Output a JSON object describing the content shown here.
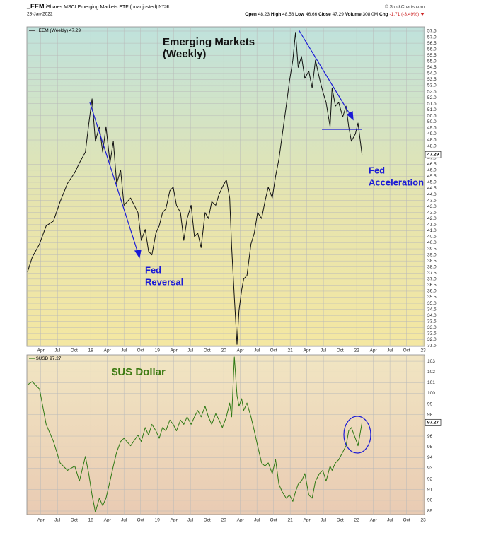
{
  "header": {
    "symbol": "_EEM",
    "description": "iShares MSCI Emerging Markets ETF (unadjusted)",
    "exchange": "NYSE",
    "copyright": "© StockCharts.com",
    "date": "28-Jan-2022",
    "quote": [
      {
        "label": "Open",
        "value": "48.23"
      },
      {
        "label": "High",
        "value": "48.58"
      },
      {
        "label": "Low",
        "value": "46.66"
      },
      {
        "label": "Close",
        "value": "47.29"
      },
      {
        "label": "Volume",
        "value": "308.0M"
      },
      {
        "label": "Chg",
        "value": "-1.71 (-3.49%)"
      }
    ]
  },
  "chart_data": [
    {
      "type": "line",
      "annotations": [
        {
          "text": "Emerging Markets",
          "color": "#111111"
        },
        {
          "text": "(Weekly)",
          "color": "#111111"
        },
        {
          "text": "Fed",
          "color": "#1a1ad6"
        },
        {
          "text": "Reversal",
          "color": "#1a1ad6"
        },
        {
          "text": "Fed",
          "color": "#1a1ad6"
        },
        {
          "text": "Acceleration",
          "color": "#1a1ad6"
        }
      ],
      "x": [
        2017.05,
        2017.12,
        2017.23,
        2017.33,
        2017.44,
        2017.54,
        2017.65,
        2017.76,
        2017.83,
        2017.92,
        2017.97,
        2018.02,
        2018.07,
        2018.13,
        2018.18,
        2018.23,
        2018.29,
        2018.34,
        2018.39,
        2018.45,
        2018.5,
        2018.6,
        2018.71,
        2018.76,
        2018.82,
        2018.87,
        2018.92,
        2018.98,
        2019.03,
        2019.08,
        2019.13,
        2019.19,
        2019.24,
        2019.29,
        2019.35,
        2019.4,
        2019.45,
        2019.51,
        2019.56,
        2019.61,
        2019.66,
        2019.72,
        2019.77,
        2019.82,
        2019.88,
        2019.93,
        2019.98,
        2020.04,
        2020.09,
        2020.12,
        2020.16,
        2020.2,
        2020.23,
        2020.27,
        2020.3,
        2020.35,
        2020.41,
        2020.46,
        2020.51,
        2020.57,
        2020.62,
        2020.67,
        2020.73,
        2020.78,
        2020.83,
        2020.88,
        2020.94,
        2020.99,
        2021.04,
        2021.08,
        2021.12,
        2021.17,
        2021.22,
        2021.28,
        2021.33,
        2021.38,
        2021.44,
        2021.49,
        2021.54,
        2021.6,
        2021.63,
        2021.68,
        2021.73,
        2021.79,
        2021.84,
        2021.88,
        2021.92,
        2021.98,
        2022.02,
        2022.08
      ],
      "series": [
        {
          "name": "_EEM (Weekly)",
          "color": "#111111",
          "values": [
            37.6,
            38.8,
            39.9,
            41.4,
            41.8,
            43.4,
            44.9,
            45.8,
            46.6,
            47.5,
            49.8,
            51.9,
            48.4,
            49.6,
            47.5,
            49.6,
            46.6,
            48.4,
            44.9,
            46.0,
            43.1,
            43.7,
            42.5,
            40.2,
            41.1,
            39.3,
            39.0,
            40.8,
            41.4,
            42.5,
            42.8,
            44.3,
            44.6,
            43.1,
            42.5,
            40.2,
            42.0,
            43.1,
            40.5,
            40.8,
            39.6,
            42.5,
            42.0,
            43.4,
            43.1,
            44.0,
            44.6,
            45.2,
            43.7,
            39.6,
            35.5,
            31.6,
            34.4,
            36.1,
            37.0,
            37.3,
            39.9,
            40.8,
            42.5,
            42.0,
            43.4,
            44.6,
            43.7,
            45.5,
            46.9,
            48.9,
            51.3,
            53.4,
            55.1,
            57.4,
            54.5,
            55.4,
            53.6,
            54.2,
            52.8,
            55.1,
            53.6,
            52.5,
            51.6,
            49.6,
            52.8,
            51.3,
            51.6,
            50.4,
            51.3,
            49.6,
            48.4,
            49.0,
            49.9,
            47.29
          ]
        }
      ],
      "xlim": [
        2017.04,
        2023.02
      ],
      "xticks": [
        {
          "value": 2017.25,
          "label": "Apr"
        },
        {
          "value": 2017.5,
          "label": "Jul"
        },
        {
          "value": 2017.75,
          "label": "Oct"
        },
        {
          "value": 2018,
          "label": "18"
        },
        {
          "value": 2018.25,
          "label": "Apr"
        },
        {
          "value": 2018.5,
          "label": "Jul"
        },
        {
          "value": 2018.75,
          "label": "Oct"
        },
        {
          "value": 2019,
          "label": "19"
        },
        {
          "value": 2019.25,
          "label": "Apr"
        },
        {
          "value": 2019.5,
          "label": "Jul"
        },
        {
          "value": 2019.75,
          "label": "Oct"
        },
        {
          "value": 2020,
          "label": "20"
        },
        {
          "value": 2020.25,
          "label": "Apr"
        },
        {
          "value": 2020.5,
          "label": "Jul"
        },
        {
          "value": 2020.75,
          "label": "Oct"
        },
        {
          "value": 2021,
          "label": "21"
        },
        {
          "value": 2021.25,
          "label": "Apr"
        },
        {
          "value": 2021.5,
          "label": "Jul"
        },
        {
          "value": 2021.75,
          "label": "Oct"
        },
        {
          "value": 2022,
          "label": "22"
        },
        {
          "value": 2022.25,
          "label": "Apr"
        },
        {
          "value": 2022.5,
          "label": "Jul"
        },
        {
          "value": 2022.75,
          "label": "Oct"
        },
        {
          "value": 2023,
          "label": "23"
        }
      ],
      "ylim": [
        31.44,
        57.85
      ],
      "yticks": [
        31.5,
        {
          "value": 32,
          "label": "32.0"
        },
        32.5,
        {
          "value": 33,
          "label": "33.0"
        },
        33.5,
        {
          "value": 34,
          "label": "34.0"
        },
        34.5,
        {
          "value": 35,
          "label": "35.0"
        },
        35.5,
        {
          "value": 36,
          "label": "36.0"
        },
        36.5,
        {
          "value": 37,
          "label": "37.0"
        },
        37.5,
        {
          "value": 38,
          "label": "38.0"
        },
        38.5,
        {
          "value": 39,
          "label": "39.0"
        },
        39.5,
        {
          "value": 40,
          "label": "40.0"
        },
        40.5,
        {
          "value": 41,
          "label": "41.0"
        },
        41.5,
        {
          "value": 42,
          "label": "42.0"
        },
        42.5,
        {
          "value": 43,
          "label": "43.0"
        },
        43.5,
        {
          "value": 44,
          "label": "44.0"
        },
        44.5,
        {
          "value": 45,
          "label": "45.0"
        },
        45.5,
        {
          "value": 46,
          "label": "46.0"
        },
        46.5,
        {
          "value": 47,
          "label": "47.0"
        },
        {
          "value": 48,
          "label": "48.0"
        },
        48.5,
        {
          "value": 49,
          "label": "49.0"
        },
        49.5,
        {
          "value": 50,
          "label": "50.0"
        },
        50.5,
        {
          "value": 51,
          "label": "51.0"
        },
        51.5,
        {
          "value": 52,
          "label": "52.0"
        },
        52.5,
        {
          "value": 53,
          "label": "53.0"
        },
        53.5,
        {
          "value": 54,
          "label": "54.0"
        },
        54.5,
        {
          "value": 55,
          "label": "55.0"
        },
        55.5,
        {
          "value": 56,
          "label": "56.0"
        },
        56.5,
        {
          "value": 57,
          "label": "57.0"
        },
        57.5
      ],
      "grid": true
    },
    {
      "type": "line",
      "annotations": [
        {
          "text": "$US Dollar",
          "color": "#3d7a12"
        }
      ],
      "x": [
        2017.05,
        2017.12,
        2017.23,
        2017.33,
        2017.44,
        2017.54,
        2017.65,
        2017.76,
        2017.83,
        2017.92,
        2017.97,
        2018.02,
        2018.07,
        2018.13,
        2018.18,
        2018.23,
        2018.29,
        2018.34,
        2018.39,
        2018.45,
        2018.5,
        2018.6,
        2018.71,
        2018.76,
        2018.82,
        2018.87,
        2018.92,
        2018.98,
        2019.03,
        2019.08,
        2019.13,
        2019.19,
        2019.24,
        2019.29,
        2019.35,
        2019.4,
        2019.45,
        2019.51,
        2019.56,
        2019.61,
        2019.66,
        2019.72,
        2019.77,
        2019.82,
        2019.88,
        2019.93,
        2019.98,
        2020.04,
        2020.09,
        2020.12,
        2020.16,
        2020.2,
        2020.23,
        2020.27,
        2020.3,
        2020.35,
        2020.41,
        2020.46,
        2020.51,
        2020.57,
        2020.62,
        2020.67,
        2020.73,
        2020.78,
        2020.83,
        2020.88,
        2020.94,
        2020.99,
        2021.04,
        2021.08,
        2021.12,
        2021.17,
        2021.22,
        2021.28,
        2021.33,
        2021.38,
        2021.44,
        2021.49,
        2021.54,
        2021.6,
        2021.63,
        2021.68,
        2021.73,
        2021.79,
        2021.84,
        2021.88,
        2021.92,
        2021.98,
        2022.02,
        2022.08
      ],
      "series": [
        {
          "name": "$USD",
          "color": "#2f7a14",
          "values": [
            100.8,
            101.1,
            100.4,
            97.1,
            95.5,
            93.5,
            92.8,
            93.2,
            91.8,
            94.1,
            92.5,
            90.5,
            88.9,
            90.2,
            89.5,
            90.2,
            91.8,
            93.2,
            94.5,
            95.5,
            95.8,
            95.1,
            96.1,
            95.5,
            96.8,
            96.1,
            97.1,
            96.5,
            95.8,
            96.8,
            96.5,
            97.5,
            97.1,
            96.5,
            97.5,
            97.1,
            97.8,
            97.1,
            97.8,
            98.4,
            97.8,
            98.8,
            97.8,
            97.1,
            98.1,
            97.5,
            96.8,
            97.8,
            99.1,
            97.8,
            103.4,
            99.8,
            98.8,
            99.5,
            98.4,
            99.1,
            97.8,
            96.5,
            95.1,
            93.5,
            93.2,
            93.5,
            92.5,
            93.8,
            91.5,
            90.8,
            90.2,
            90.5,
            89.9,
            90.8,
            91.5,
            91.8,
            92.5,
            90.5,
            90.2,
            91.8,
            92.5,
            92.8,
            91.8,
            93.2,
            92.8,
            93.5,
            93.8,
            94.5,
            95.1,
            96.5,
            96.8,
            95.8,
            95.1,
            97.27
          ]
        }
      ],
      "xlim": [
        2017.04,
        2023.02
      ],
      "xticks": [
        {
          "value": 2017.25,
          "label": "Apr"
        },
        {
          "value": 2017.5,
          "label": "Jul"
        },
        {
          "value": 2017.75,
          "label": "Oct"
        },
        {
          "value": 2018,
          "label": "18"
        },
        {
          "value": 2018.25,
          "label": "Apr"
        },
        {
          "value": 2018.5,
          "label": "Jul"
        },
        {
          "value": 2018.75,
          "label": "Oct"
        },
        {
          "value": 2019,
          "label": "19"
        },
        {
          "value": 2019.25,
          "label": "Apr"
        },
        {
          "value": 2019.5,
          "label": "Jul"
        },
        {
          "value": 2019.75,
          "label": "Oct"
        },
        {
          "value": 2020,
          "label": "20"
        },
        {
          "value": 2020.25,
          "label": "Apr"
        },
        {
          "value": 2020.5,
          "label": "Jul"
        },
        {
          "value": 2020.75,
          "label": "Oct"
        },
        {
          "value": 2021,
          "label": "21"
        },
        {
          "value": 2021.25,
          "label": "Apr"
        },
        {
          "value": 2021.5,
          "label": "Jul"
        },
        {
          "value": 2021.75,
          "label": "Oct"
        },
        {
          "value": 2022,
          "label": "22"
        },
        {
          "value": 2022.25,
          "label": "Apr"
        },
        {
          "value": 2022.5,
          "label": "Jul"
        },
        {
          "value": 2022.75,
          "label": "Oct"
        },
        {
          "value": 2023,
          "label": "23"
        }
      ],
      "ylim": [
        88.67,
        103.6
      ],
      "yticks": [
        89,
        90,
        91,
        92,
        93,
        94,
        95,
        96,
        98,
        99,
        100,
        101,
        102,
        103
      ],
      "grid": true
    }
  ]
}
